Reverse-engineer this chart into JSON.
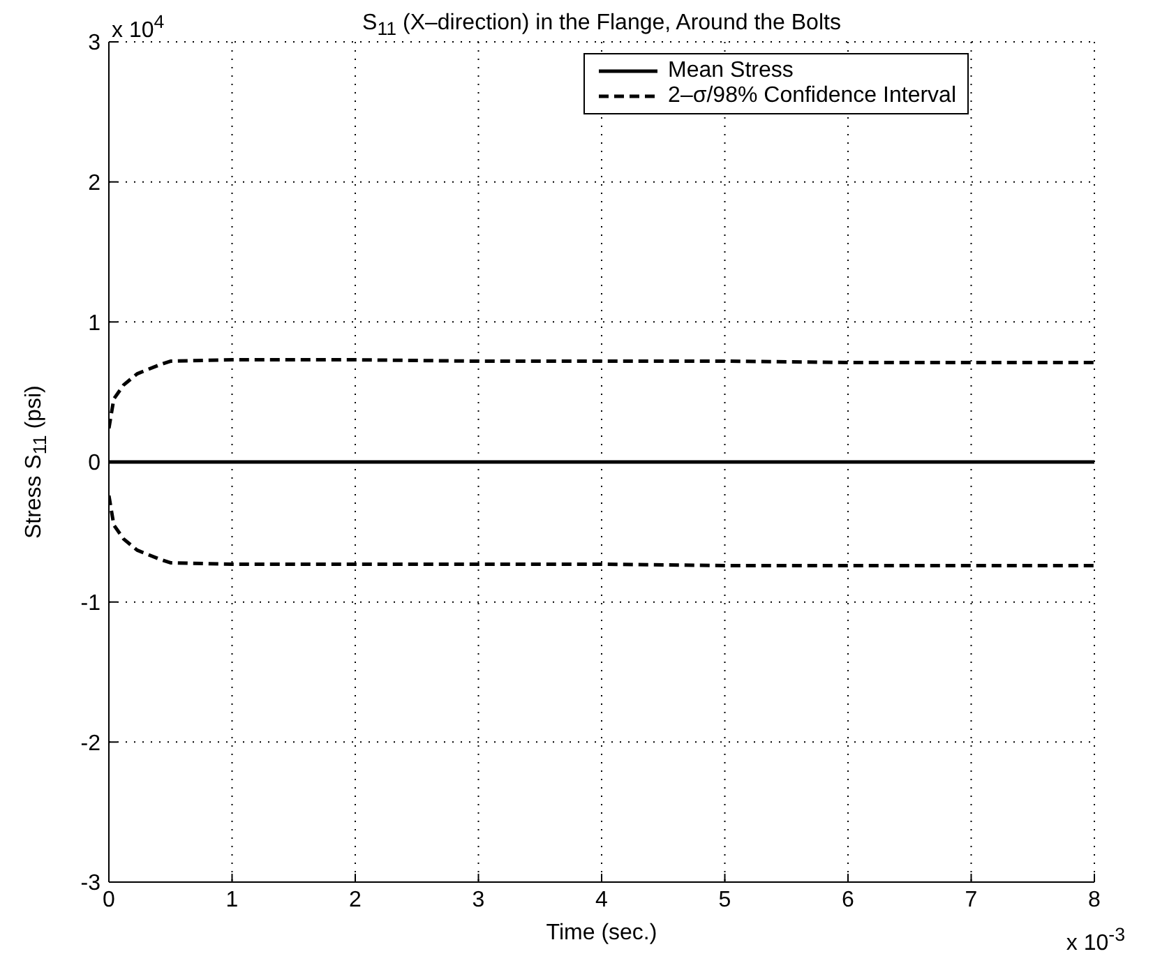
{
  "chart_data": {
    "type": "line",
    "title": "S$_{11}$ (X–direction) in the Flange, Around the Bolts",
    "xlabel": "Time (sec.)",
    "ylabel": "Stress S$_{11}$ (psi)",
    "annotations": [
      "x 10$^{4}$",
      "x 10$^{-3}$"
    ],
    "xlim": [
      0,
      8
    ],
    "ylim": [
      -3,
      3
    ],
    "xticks": [
      0,
      1,
      2,
      3,
      4,
      5,
      6,
      7,
      8
    ],
    "yticks": [
      -3,
      -2,
      -1,
      0,
      1,
      2,
      3
    ],
    "grid": true,
    "legend": "top right",
    "marker": "none",
    "series": [
      {
        "name": "Mean Stress",
        "color": "#000000",
        "line_style": "solid",
        "x": [
          0,
          1,
          2,
          3,
          4,
          5,
          6,
          7,
          8
        ],
        "values": [
          0,
          0,
          0,
          0,
          0,
          0,
          0,
          0,
          0
        ]
      },
      {
        "name": "2–σ/98% Confidence Interval",
        "color": "#000000",
        "line_style": "dashed",
        "x": [
          0,
          0.04,
          0.12,
          0.23,
          0.4,
          0.5,
          1,
          2,
          3,
          4,
          5,
          6,
          7,
          8
        ],
        "values": [
          0.24,
          0.45,
          0.55,
          0.63,
          0.69,
          0.72,
          0.73,
          0.73,
          0.72,
          0.72,
          0.72,
          0.71,
          0.71,
          0.71
        ]
      },
      {
        "color": "#000000",
        "line_style": "dashed",
        "x": [
          0,
          0.04,
          0.12,
          0.23,
          0.4,
          0.5,
          1,
          2,
          3,
          4,
          5,
          6,
          7,
          8
        ],
        "values": [
          -0.24,
          -0.45,
          -0.55,
          -0.63,
          -0.69,
          -0.72,
          -0.73,
          -0.73,
          -0.73,
          -0.73,
          -0.74,
          -0.74,
          -0.74,
          -0.74
        ]
      }
    ]
  }
}
